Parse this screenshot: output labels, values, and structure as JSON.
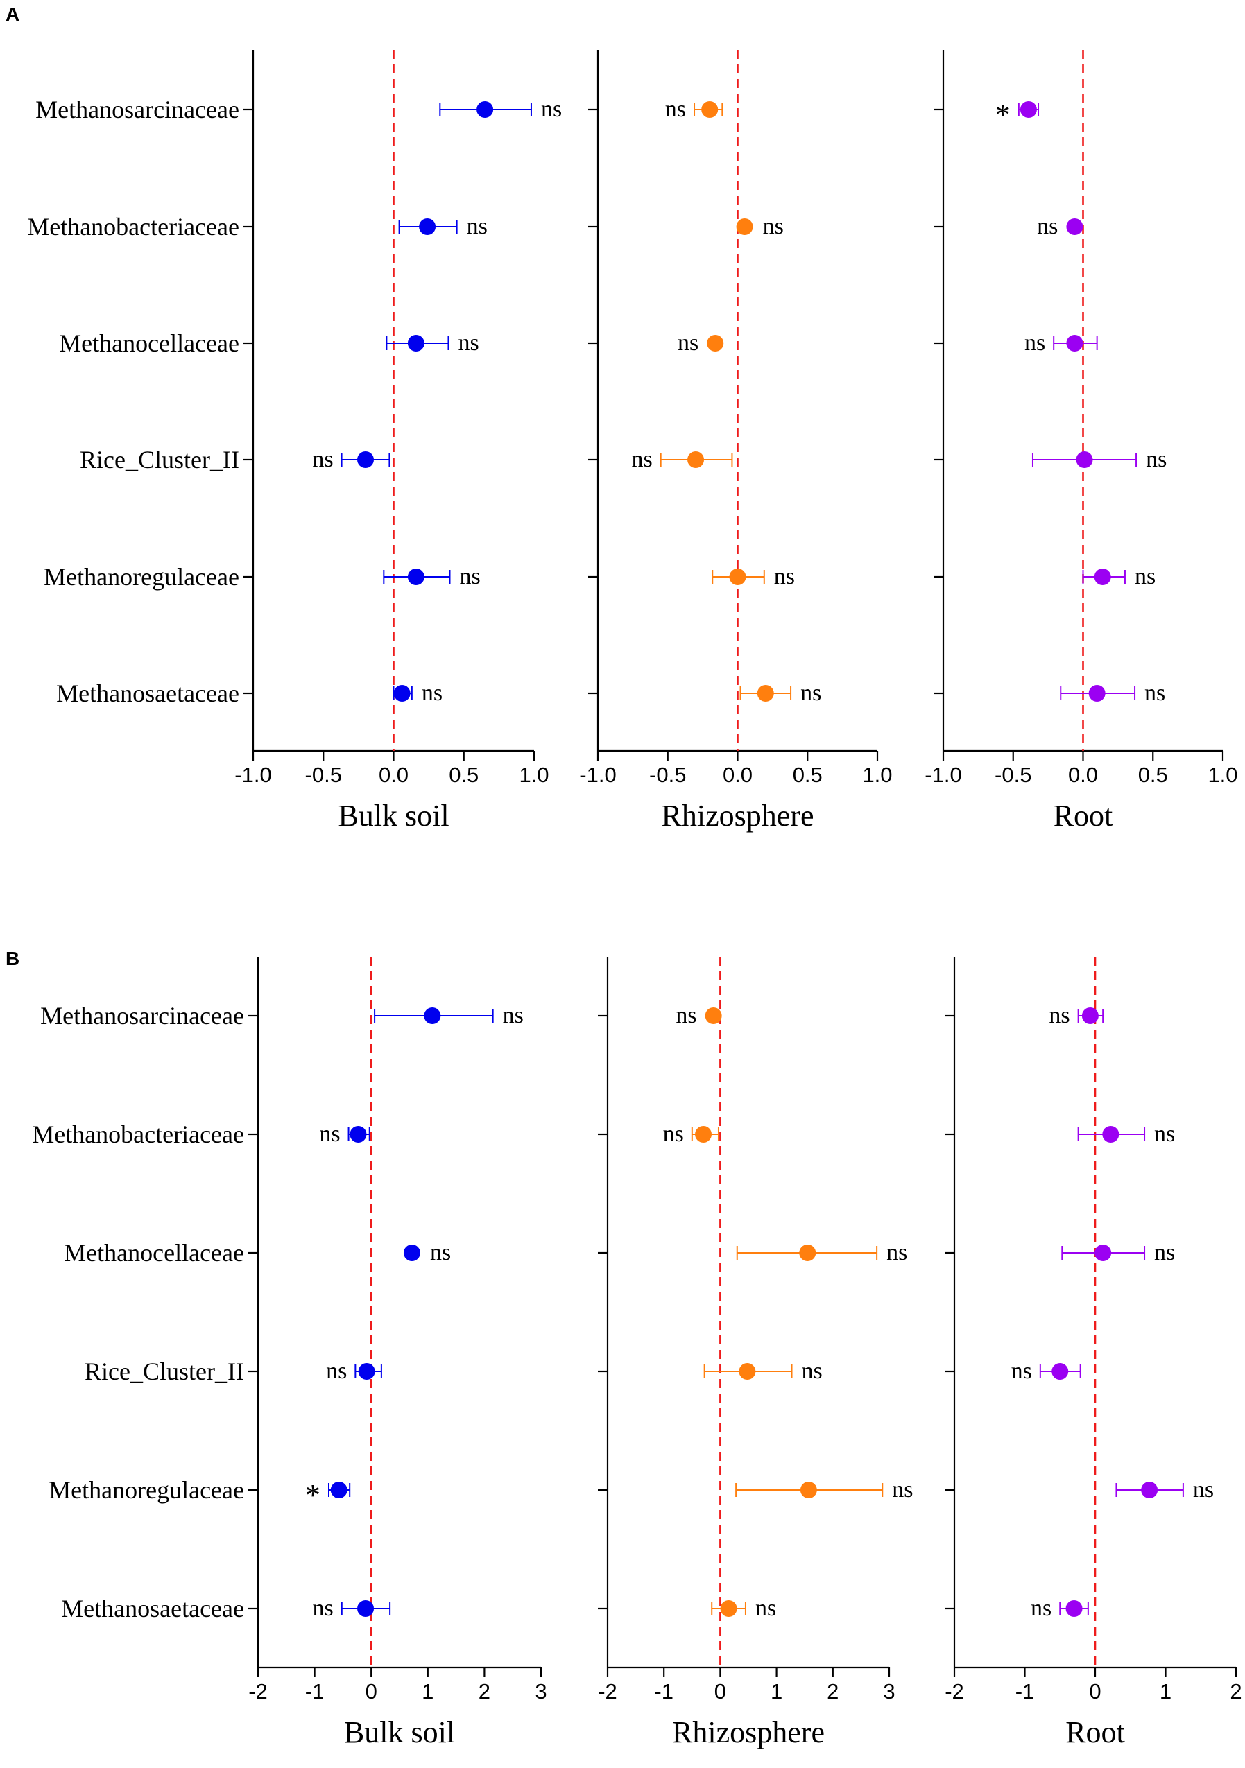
{
  "figure": {
    "panels": [
      {
        "label": "A",
        "subplots": [
          "A-0",
          "A-1",
          "A-2"
        ]
      },
      {
        "label": "B",
        "subplots": [
          "B-0",
          "B-1",
          "B-2"
        ]
      }
    ]
  },
  "chart_data": [
    {
      "id": "A-0",
      "type": "scatter",
      "panel": "A",
      "xlabel": "Bulk soil",
      "xlim": [
        -1.0,
        1.0
      ],
      "xticks": [
        "-1.0",
        "-0.5",
        "0.0",
        "0.5",
        "1.0"
      ],
      "ref_line": 0,
      "color": "#0000ee",
      "categories": [
        "Methanosarcinaceae",
        "Methanobacteriaceae",
        "Methanocellaceae",
        "Rice_Cluster_II",
        "Methanoregulaceae",
        "Methanosaetaceae"
      ],
      "points": [
        {
          "value": 0.65,
          "low": 0.33,
          "high": 0.98,
          "sig": "ns"
        },
        {
          "value": 0.24,
          "low": 0.04,
          "high": 0.45,
          "sig": "ns"
        },
        {
          "value": 0.16,
          "low": -0.05,
          "high": 0.39,
          "sig": "ns"
        },
        {
          "value": -0.2,
          "low": -0.37,
          "high": -0.03,
          "sig": "ns"
        },
        {
          "value": 0.16,
          "low": -0.07,
          "high": 0.4,
          "sig": "ns"
        },
        {
          "value": 0.06,
          "low": 0.0,
          "high": 0.13,
          "sig": "ns"
        }
      ]
    },
    {
      "id": "A-1",
      "type": "scatter",
      "panel": "A",
      "xlabel": "Rhizosphere",
      "xlim": [
        -1.0,
        1.0
      ],
      "xticks": [
        "-1.0",
        "-0.5",
        "0.0",
        "0.5",
        "1.0"
      ],
      "ref_line": 0,
      "color": "#ff7f0e",
      "categories": [
        "Methanosarcinaceae",
        "Methanobacteriaceae",
        "Methanocellaceae",
        "Rice_Cluster_II",
        "Methanoregulaceae",
        "Methanosaetaceae"
      ],
      "points": [
        {
          "value": -0.2,
          "low": -0.31,
          "high": -0.11,
          "sig": "ns"
        },
        {
          "value": 0.05,
          "low": 0.05,
          "high": 0.05,
          "sig": "ns"
        },
        {
          "value": -0.16,
          "low": -0.16,
          "high": -0.16,
          "sig": "ns"
        },
        {
          "value": -0.3,
          "low": -0.55,
          "high": -0.04,
          "sig": "ns"
        },
        {
          "value": 0.0,
          "low": -0.18,
          "high": 0.19,
          "sig": "ns"
        },
        {
          "value": 0.2,
          "low": 0.02,
          "high": 0.38,
          "sig": "ns"
        }
      ]
    },
    {
      "id": "A-2",
      "type": "scatter",
      "panel": "A",
      "xlabel": "Root",
      "xlim": [
        -1.0,
        1.0
      ],
      "xticks": [
        "-1.0",
        "-0.5",
        "0.0",
        "0.5",
        "1.0"
      ],
      "ref_line": 0,
      "color": "#9b00f2",
      "categories": [
        "Methanosarcinaceae",
        "Methanobacteriaceae",
        "Methanocellaceae",
        "Rice_Cluster_II",
        "Methanoregulaceae",
        "Methanosaetaceae"
      ],
      "points": [
        {
          "value": -0.39,
          "low": -0.46,
          "high": -0.32,
          "sig": "*"
        },
        {
          "value": -0.06,
          "low": -0.06,
          "high": -0.06,
          "sig": "ns"
        },
        {
          "value": -0.06,
          "low": -0.21,
          "high": 0.1,
          "sig": "ns"
        },
        {
          "value": 0.01,
          "low": -0.36,
          "high": 0.38,
          "sig": "ns"
        },
        {
          "value": 0.14,
          "low": 0.0,
          "high": 0.3,
          "sig": "ns"
        },
        {
          "value": 0.1,
          "low": -0.16,
          "high": 0.37,
          "sig": "ns"
        }
      ]
    },
    {
      "id": "B-0",
      "type": "scatter",
      "panel": "B",
      "xlabel": "Bulk soil",
      "xlim": [
        -2,
        3
      ],
      "xticks": [
        "-2",
        "-1",
        "0",
        "1",
        "2",
        "3"
      ],
      "ref_line": 0,
      "color": "#0000ee",
      "categories": [
        "Methanosarcinaceae",
        "Methanobacteriaceae",
        "Methanocellaceae",
        "Rice_Cluster_II",
        "Methanoregulaceae",
        "Methanosaetaceae"
      ],
      "points": [
        {
          "value": 1.08,
          "low": 0.06,
          "high": 2.15,
          "sig": "ns"
        },
        {
          "value": -0.23,
          "low": -0.4,
          "high": -0.03,
          "sig": "ns"
        },
        {
          "value": 0.72,
          "low": 0.72,
          "high": 0.72,
          "sig": "ns"
        },
        {
          "value": -0.08,
          "low": -0.28,
          "high": 0.18,
          "sig": "ns"
        },
        {
          "value": -0.57,
          "low": -0.75,
          "high": -0.38,
          "sig": "*"
        },
        {
          "value": -0.1,
          "low": -0.52,
          "high": 0.33,
          "sig": "ns"
        }
      ]
    },
    {
      "id": "B-1",
      "type": "scatter",
      "panel": "B",
      "xlabel": "Rhizosphere",
      "xlim": [
        -2,
        3
      ],
      "xticks": [
        "-2",
        "-1",
        "0",
        "1",
        "2",
        "3"
      ],
      "ref_line": 0,
      "color": "#ff7f0e",
      "categories": [
        "Methanosarcinaceae",
        "Methanobacteriaceae",
        "Methanocellaceae",
        "Rice_Cluster_II",
        "Methanoregulaceae",
        "Methanosaetaceae"
      ],
      "points": [
        {
          "value": -0.12,
          "low": -0.12,
          "high": -0.12,
          "sig": "ns"
        },
        {
          "value": -0.3,
          "low": -0.5,
          "high": -0.03,
          "sig": "ns"
        },
        {
          "value": 1.55,
          "low": 0.3,
          "high": 2.78,
          "sig": "ns"
        },
        {
          "value": 0.48,
          "low": -0.28,
          "high": 1.27,
          "sig": "ns"
        },
        {
          "value": 1.57,
          "low": 0.28,
          "high": 2.88,
          "sig": "ns"
        },
        {
          "value": 0.15,
          "low": -0.15,
          "high": 0.45,
          "sig": "ns"
        }
      ]
    },
    {
      "id": "B-2",
      "type": "scatter",
      "panel": "B",
      "xlabel": "Root",
      "xlim": [
        -2,
        2
      ],
      "xticks": [
        "-2",
        "-1",
        "0",
        "1",
        "2"
      ],
      "ref_line": 0,
      "color": "#9b00f2",
      "categories": [
        "Methanosarcinaceae",
        "Methanobacteriaceae",
        "Methanocellaceae",
        "Rice_Cluster_II",
        "Methanoregulaceae",
        "Methanosaetaceae"
      ],
      "points": [
        {
          "value": -0.07,
          "low": -0.24,
          "high": 0.11,
          "sig": "ns"
        },
        {
          "value": 0.22,
          "low": -0.24,
          "high": 0.7,
          "sig": "ns"
        },
        {
          "value": 0.11,
          "low": -0.47,
          "high": 0.7,
          "sig": "ns"
        },
        {
          "value": -0.5,
          "low": -0.78,
          "high": -0.21,
          "sig": "ns"
        },
        {
          "value": 0.77,
          "low": 0.3,
          "high": 1.25,
          "sig": "ns"
        },
        {
          "value": -0.3,
          "low": -0.5,
          "high": -0.1,
          "sig": "ns"
        }
      ]
    }
  ]
}
